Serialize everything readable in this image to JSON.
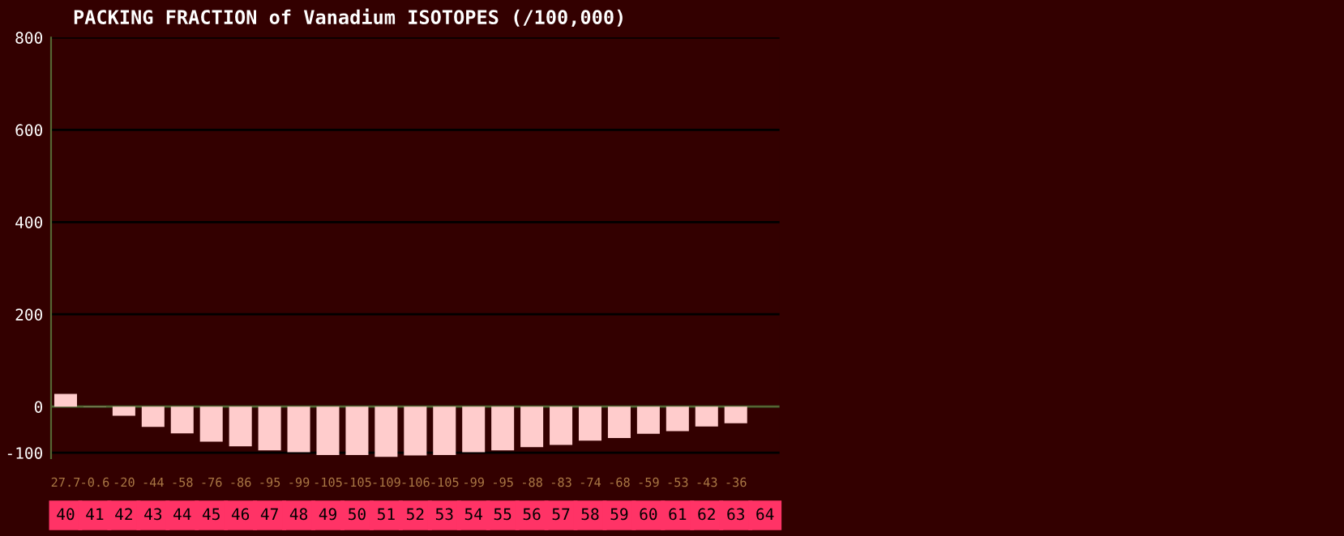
{
  "chart_data": {
    "type": "bar",
    "title": "PACKING FRACTION of Vanadium ISOTOPES (/100,000)",
    "categories": [
      "40",
      "41",
      "42",
      "43",
      "44",
      "45",
      "46",
      "47",
      "48",
      "49",
      "50",
      "51",
      "52",
      "53",
      "54",
      "55",
      "56",
      "57",
      "58",
      "59",
      "60",
      "61",
      "62",
      "63",
      "64"
    ],
    "values": [
      27.7,
      -0.6,
      -20,
      -44,
      -58,
      -76,
      -86,
      -95,
      -99,
      -105,
      -105,
      -109,
      -106,
      -105,
      -99,
      -95,
      -88,
      -83,
      -74,
      -68,
      -59,
      -53,
      -43,
      -36,
      null
    ],
    "value_labels": [
      "27.7",
      "-0.6",
      "-20",
      "-44",
      "-58",
      "-76",
      "-86",
      "-95",
      "-99",
      "-105",
      "-105",
      "-109",
      "-106",
      "-105",
      "-99",
      "-95",
      "-88",
      "-83",
      "-74",
      "-68",
      "-59",
      "-53",
      "-43",
      "-36",
      null
    ],
    "color": "#ffcccc",
    "ylim": [
      -112,
      800
    ],
    "yticks": [
      -100,
      0,
      200,
      400,
      600,
      800
    ],
    "grid": "y",
    "legend": false,
    "ref_lines": [
      {
        "axis": "y",
        "value": 0,
        "color": "#556633"
      }
    ]
  }
}
